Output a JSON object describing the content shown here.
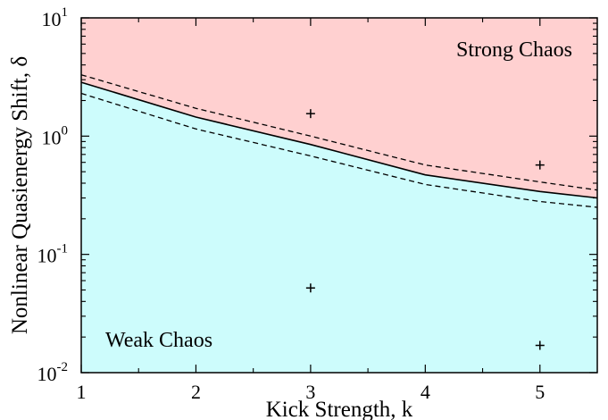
{
  "chart_data": {
    "type": "area",
    "xlabel": "Kick Strength, k",
    "ylabel": "Nonlinear Quasienergy Shift, δ",
    "xlim": [
      1,
      5.5
    ],
    "ylim": [
      0.01,
      10
    ],
    "yscale": "log",
    "grid": false,
    "x_ticks": [
      1,
      2,
      3,
      4,
      5
    ],
    "y_ticks": [
      {
        "value": 0.01,
        "base": "10",
        "exp": "-2"
      },
      {
        "value": 0.1,
        "base": "10",
        "exp": "-1"
      },
      {
        "value": 1,
        "base": "10",
        "exp": "0"
      },
      {
        "value": 10,
        "base": "10",
        "exp": "1"
      }
    ],
    "regions": [
      {
        "label": "Strong Chaos",
        "color": "#ffd0d0"
      },
      {
        "label": "Weak Chaos",
        "color": "#cdfcfc"
      }
    ],
    "series": [
      {
        "style": "solid",
        "x": [
          1,
          2,
          3,
          4,
          5,
          5.5
        ],
        "y": [
          2.85,
          1.45,
          0.85,
          0.47,
          0.34,
          0.3
        ]
      },
      {
        "style": "dashed",
        "x": [
          1,
          2,
          3,
          4,
          5,
          5.5
        ],
        "y": [
          3.3,
          1.72,
          1.0,
          0.57,
          0.41,
          0.35
        ]
      },
      {
        "style": "dashed",
        "x": [
          1,
          2,
          3,
          4,
          5,
          5.5
        ],
        "y": [
          2.3,
          1.15,
          0.68,
          0.39,
          0.28,
          0.25
        ]
      }
    ],
    "points": {
      "marker": "+",
      "x": [
        3,
        3,
        5,
        5
      ],
      "y": [
        1.55,
        0.052,
        0.57,
        0.017
      ]
    }
  }
}
